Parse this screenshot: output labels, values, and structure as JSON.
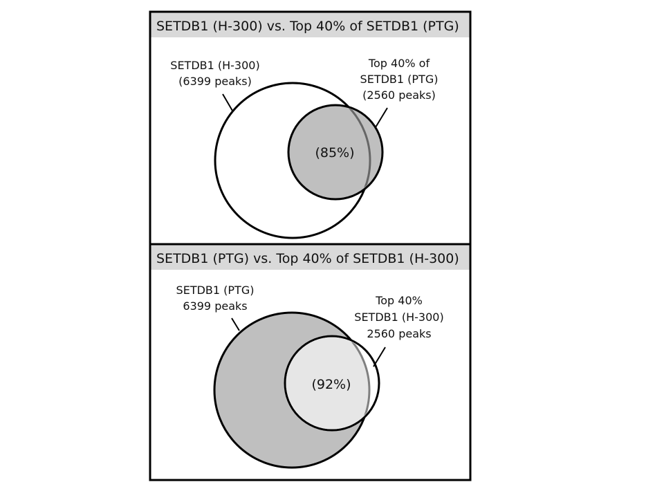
{
  "colors": {
    "frame": "#000000",
    "title_bar": "#d9d9d9",
    "dark_fill": "#bfbfbf",
    "light_fill": "#e6e6e6",
    "white_fill": "#ffffff",
    "overlap_edge": "#666666",
    "text": "#111111"
  },
  "panels": [
    {
      "title": "SETDB1 (H-300) vs. Top 40% of SETDB1 (PTG)",
      "big_set": {
        "label_lines": [
          "SETDB1 (H-300)",
          "(6399 peaks)"
        ]
      },
      "small_set": {
        "label_lines": [
          "Top 40% of",
          "SETDB1 (PTG)",
          "(2560 peaks)"
        ]
      },
      "overlap": "(85%)"
    },
    {
      "title": "SETDB1 (PTG) vs. Top 40% of SETDB1 (H-300)",
      "big_set": {
        "label_lines": [
          "SETDB1 (PTG)",
          "6399 peaks"
        ]
      },
      "small_set": {
        "label_lines": [
          "Top 40%",
          "SETDB1 (H-300)",
          "2560 peaks"
        ]
      },
      "overlap": "(92%)"
    }
  ]
}
